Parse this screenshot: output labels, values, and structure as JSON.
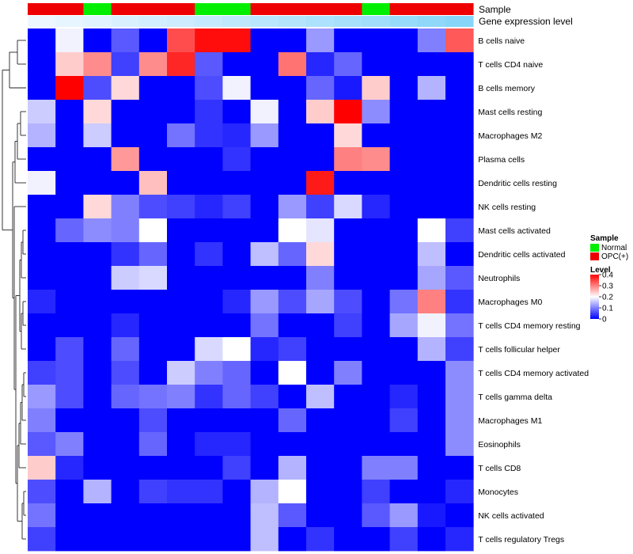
{
  "chart_data": {
    "type": "heatmap",
    "annotation_tracks": [
      "Sample",
      "Gene expression level"
    ],
    "legend": {
      "sample_title": "Sample",
      "sample_entries": [
        {
          "label": "Normal",
          "color": "#00ee00"
        },
        {
          "label": "OPC(+)",
          "color": "#ee0000"
        }
      ],
      "level_title": "Level",
      "level_ticks": [
        "0",
        "0.1",
        "0.2",
        "0.3",
        "0.4"
      ],
      "level_range": [
        0,
        0.4
      ],
      "colors": {
        "low": "#0000ff",
        "mid": "#ffffff",
        "high": "#ff0000"
      }
    },
    "sample_groups": [
      "OPC(+)",
      "OPC(+)",
      "Normal",
      "OPC(+)",
      "OPC(+)",
      "OPC(+)",
      "Normal",
      "Normal",
      "OPC(+)",
      "OPC(+)",
      "OPC(+)",
      "OPC(+)",
      "Normal",
      "OPC(+)",
      "OPC(+)",
      "OPC(+)"
    ],
    "expression_level": [
      0.02,
      0.06,
      0.1,
      0.14,
      0.18,
      0.22,
      0.26,
      0.3,
      0.34,
      0.38,
      0.42,
      0.46,
      0.5,
      0.55,
      0.6,
      0.65
    ],
    "rows": [
      "B cells naive",
      "T cells CD4 naive",
      "B cells memory",
      "Mast cells resting",
      "Macrophages M2",
      "Plasma cells",
      "Dendritic cells resting",
      "NK cells resting",
      "Mast cells activated",
      "Dendritic cells activated",
      "Neutrophils",
      "Macrophages M0",
      "T cells CD4 memory resting",
      "T cells follicular helper",
      "T cells CD4 memory activated",
      "T cells gamma delta",
      "Macrophages M1",
      "Eosinophils",
      "T cells CD8",
      "Monocytes",
      "NK cells activated",
      "T cells regulatory  Tregs"
    ],
    "values": [
      [
        0,
        0.19,
        0,
        0.07,
        0,
        0.34,
        0.39,
        0.39,
        0,
        0,
        0.12,
        0,
        0,
        0,
        0.1,
        0.33
      ],
      [
        0,
        0.24,
        0.29,
        0.05,
        0.29,
        0.37,
        0.07,
        0,
        0,
        0.31,
        0.03,
        0.08,
        0,
        0,
        0,
        0
      ],
      [
        0,
        0.42,
        0.06,
        0.23,
        0,
        0,
        0.06,
        0.19,
        0,
        0,
        0.08,
        0.02,
        0.24,
        0,
        0.14,
        0
      ],
      [
        0.16,
        0,
        0.23,
        0,
        0,
        0,
        0.04,
        0,
        0.19,
        0,
        0.24,
        0.4,
        0.11,
        0,
        0,
        0
      ],
      [
        0.14,
        0,
        0.16,
        0,
        0,
        0.09,
        0.04,
        0.03,
        0.12,
        0,
        0,
        0.23,
        0,
        0,
        0,
        0
      ],
      [
        0,
        0,
        0,
        0.28,
        0,
        0,
        0,
        0.04,
        0,
        0,
        0,
        0.3,
        0.29,
        0,
        0,
        0
      ],
      [
        0.19,
        0,
        0,
        0,
        0.25,
        0,
        0,
        0,
        0,
        0,
        0.38,
        0,
        0,
        0,
        0,
        0
      ],
      [
        0,
        0,
        0.23,
        0.1,
        0.06,
        0.05,
        0.03,
        0.05,
        0,
        0.12,
        0.05,
        0.17,
        0.03,
        0,
        0,
        0
      ],
      [
        0,
        0.08,
        0.11,
        0.1,
        0.2,
        0,
        0,
        0,
        0,
        0.2,
        0.18,
        0,
        0,
        0,
        0.2,
        0.05
      ],
      [
        0,
        0,
        0,
        0.04,
        0.08,
        0,
        0.04,
        0,
        0.15,
        0.08,
        0.23,
        0,
        0,
        0,
        0.15,
        0
      ],
      [
        0,
        0,
        0,
        0.16,
        0.17,
        0,
        0,
        0,
        0,
        0,
        0.1,
        0,
        0,
        0,
        0.13,
        0.07
      ],
      [
        0.03,
        0,
        0,
        0,
        0,
        0,
        0,
        0.03,
        0.12,
        0.06,
        0.13,
        0.06,
        0,
        0.09,
        0.3,
        0.04
      ],
      [
        0,
        0,
        0,
        0.03,
        0,
        0,
        0,
        0,
        0.09,
        0,
        0,
        0.05,
        0,
        0.13,
        0.19,
        0.09
      ],
      [
        0,
        0.06,
        0,
        0.08,
        0,
        0,
        0.17,
        0.2,
        0.03,
        0.05,
        0,
        0,
        0,
        0,
        0.14,
        0.05
      ],
      [
        0.05,
        0.06,
        0,
        0.06,
        0,
        0.16,
        0.1,
        0.08,
        0,
        0.2,
        0,
        0.1,
        0,
        0,
        0,
        0.11
      ],
      [
        0.12,
        0.06,
        0,
        0.08,
        0.09,
        0.1,
        0.04,
        0.08,
        0.05,
        0,
        0.15,
        0,
        0,
        0.03,
        0,
        0.11
      ],
      [
        0.1,
        0,
        0,
        0,
        0.06,
        0,
        0,
        0,
        0,
        0.08,
        0,
        0,
        0,
        0.05,
        0,
        0.11
      ],
      [
        0.07,
        0.1,
        0,
        0,
        0.08,
        0,
        0.03,
        0.03,
        0,
        0,
        0,
        0,
        0,
        0,
        0,
        0.11
      ],
      [
        0.24,
        0.03,
        0,
        0,
        0,
        0,
        0,
        0.05,
        0,
        0.14,
        0,
        0,
        0.1,
        0.1,
        0,
        0
      ],
      [
        0.06,
        0,
        0.14,
        0,
        0.05,
        0.04,
        0.04,
        0,
        0.14,
        0.2,
        0,
        0,
        0.05,
        0,
        0,
        0.03
      ],
      [
        0.09,
        0,
        0,
        0,
        0,
        0,
        0,
        0,
        0.15,
        0.07,
        0,
        0,
        0.07,
        0.12,
        0.02,
        0
      ],
      [
        0.05,
        0,
        0,
        0,
        0,
        0,
        0,
        0,
        0.15,
        0,
        0.04,
        0,
        0,
        0.05,
        0,
        0.03
      ]
    ]
  }
}
